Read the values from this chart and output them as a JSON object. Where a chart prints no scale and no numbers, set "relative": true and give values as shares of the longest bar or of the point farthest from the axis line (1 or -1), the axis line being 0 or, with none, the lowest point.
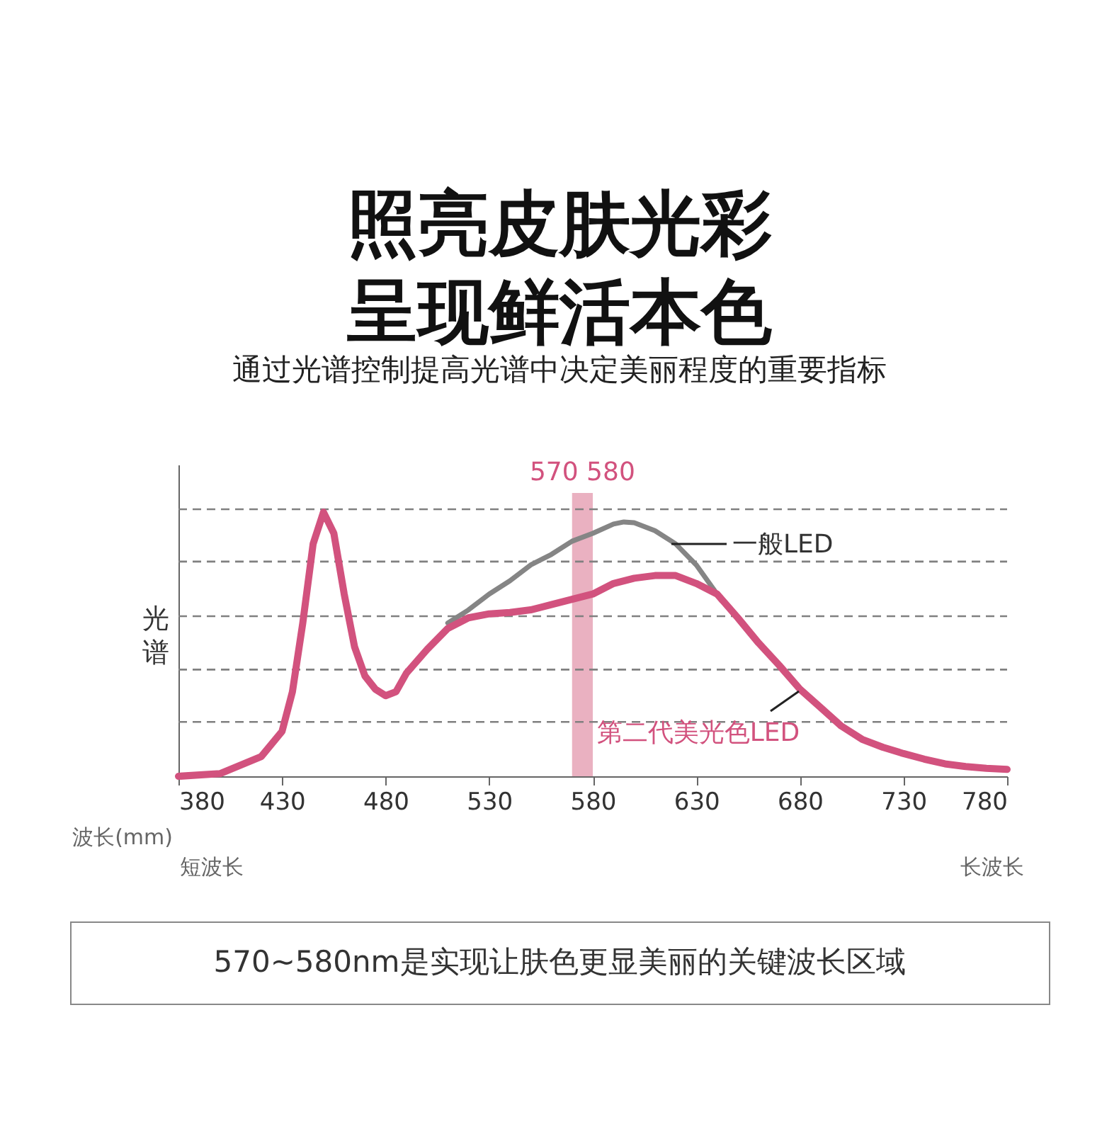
{
  "chart_data": {
    "type": "line",
    "relative": true,
    "title": "照亮皮肤光彩呈现鲜活本色",
    "subtitle": "通过光谱控制提高光谱中决定美丽程度的重要指标",
    "ylabel": "光谱",
    "xlim": [
      380,
      780
    ],
    "xticks": [
      380,
      430,
      480,
      530,
      580,
      630,
      680,
      730,
      780
    ],
    "series": [
      {
        "name": "第二代美光色LED",
        "color": "#d2527e",
        "x": [
          380,
          400,
          420,
          430,
          435,
          440,
          445,
          450,
          455,
          460,
          465,
          470,
          475,
          480,
          485,
          490,
          500,
          510,
          520,
          530,
          540,
          550,
          560,
          570,
          580,
          590,
          600,
          610,
          620,
          630,
          640,
          650,
          660,
          670,
          680,
          690,
          700,
          710,
          720,
          730,
          740,
          750,
          760,
          770,
          780
        ],
        "values": [
          0,
          0.01,
          0.075,
          0.17,
          0.32,
          0.58,
          0.88,
          1.0,
          0.92,
          0.69,
          0.49,
          0.38,
          0.33,
          0.305,
          0.32,
          0.39,
          0.48,
          0.56,
          0.6,
          0.615,
          0.62,
          0.63,
          0.65,
          0.67,
          0.69,
          0.73,
          0.75,
          0.76,
          0.76,
          0.73,
          0.69,
          0.6,
          0.505,
          0.42,
          0.33,
          0.26,
          0.19,
          0.14,
          0.11,
          0.086,
          0.065,
          0.047,
          0.037,
          0.03,
          0.026
        ]
      },
      {
        "name": "一般LED",
        "color": "#858585",
        "x": [
          510,
          520,
          530,
          540,
          550,
          560,
          570,
          580,
          590,
          595,
          600,
          610,
          620,
          630,
          640
        ],
        "values": [
          0.58,
          0.63,
          0.69,
          0.74,
          0.8,
          0.84,
          0.89,
          0.92,
          0.955,
          0.963,
          0.96,
          0.93,
          0.88,
          0.8,
          0.69
        ]
      }
    ],
    "bands": [
      {
        "axis": "x",
        "from": 570,
        "to": 580,
        "label": "570 580",
        "color": "#e8a9ba"
      }
    ],
    "ref_lines": [
      {
        "axis": "y",
        "value": 0.206,
        "color": "#808080",
        "line_style": "dashed"
      },
      {
        "axis": "y",
        "value": 0.404,
        "color": "#808080",
        "line_style": "dashed"
      },
      {
        "axis": "y",
        "value": 0.606,
        "color": "#808080",
        "line_style": "dashed"
      },
      {
        "axis": "y",
        "value": 0.813,
        "color": "#808080",
        "line_style": "dashed"
      },
      {
        "axis": "y",
        "value": 1.011,
        "color": "#808080",
        "line_style": "dashed"
      }
    ],
    "grid": false,
    "legend": false,
    "marker": "none",
    "line_style": "solid",
    "annotations": [
      "波长(mm)",
      "短波长",
      "长波长",
      "570~580nm是实现让肤色更显美丽的关键波长区域"
    ]
  }
}
